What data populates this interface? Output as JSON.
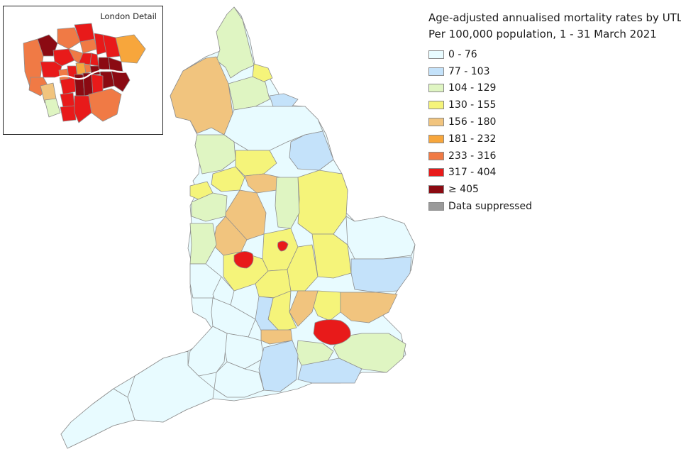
{
  "title": {
    "line1": "Age-adjusted annualised mortality rates by UTLA",
    "line2": "Per 100,000 population, 1 - 31 March 2021"
  },
  "inset": {
    "title": "London Detail"
  },
  "legend": [
    {
      "label": "0 - 76",
      "color": "#e8fbff"
    },
    {
      "label": "77 - 103",
      "color": "#c4e2fa"
    },
    {
      "label": "104 - 129",
      "color": "#dff5c2"
    },
    {
      "label": "130 - 155",
      "color": "#f5f47a"
    },
    {
      "label": "156 - 180",
      "color": "#f1c47e"
    },
    {
      "label": "181 - 232",
      "color": "#f7a63c"
    },
    {
      "label": "233 - 316",
      "color": "#f07a45"
    },
    {
      "label": "317 - 404",
      "color": "#e81a1a"
    },
    {
      "label": "≥ 405",
      "color": "#8b0a12"
    },
    {
      "label": "Data suppressed",
      "color": "#9a9a9a"
    }
  ],
  "regions": [
    {
      "name": "northumberland",
      "band": 2
    },
    {
      "name": "cumbria",
      "band": 4
    },
    {
      "name": "tyne-and-wear",
      "band": 3
    },
    {
      "name": "county-durham",
      "band": 2
    },
    {
      "name": "tees-valley",
      "band": 1
    },
    {
      "name": "north-yorkshire",
      "band": 0
    },
    {
      "name": "east-riding",
      "band": 1
    },
    {
      "name": "lancashire",
      "band": 2
    },
    {
      "name": "west-yorkshire",
      "band": 3
    },
    {
      "name": "south-yorkshire",
      "band": 4
    },
    {
      "name": "greater-manchester",
      "band": 3
    },
    {
      "name": "merseyside",
      "band": 3
    },
    {
      "name": "cheshire",
      "band": 2
    },
    {
      "name": "lincolnshire",
      "band": 3
    },
    {
      "name": "derbyshire",
      "band": 4
    },
    {
      "name": "nottinghamshire",
      "band": 2
    },
    {
      "name": "staffordshire",
      "band": 4
    },
    {
      "name": "shropshire",
      "band": 2
    },
    {
      "name": "west-midlands",
      "band": 3
    },
    {
      "name": "leicestershire",
      "band": 3
    },
    {
      "name": "herefordshire",
      "band": 0
    },
    {
      "name": "worcestershire",
      "band": 0
    },
    {
      "name": "warwickshire",
      "band": 3
    },
    {
      "name": "northamptonshire",
      "band": 3
    },
    {
      "name": "cambridgeshire",
      "band": 3
    },
    {
      "name": "norfolk",
      "band": 0
    },
    {
      "name": "suffolk",
      "band": 1
    },
    {
      "name": "essex",
      "band": 4
    },
    {
      "name": "hertfordshire",
      "band": 3
    },
    {
      "name": "bedfordshire",
      "band": 4
    },
    {
      "name": "buckinghamshire",
      "band": 3
    },
    {
      "name": "oxfordshire",
      "band": 1
    },
    {
      "name": "gloucestershire",
      "band": 0
    },
    {
      "name": "wiltshire",
      "band": 0
    },
    {
      "name": "berkshire",
      "band": 4
    },
    {
      "name": "surrey",
      "band": 2
    },
    {
      "name": "kent",
      "band": 2
    },
    {
      "name": "west-sussex",
      "band": 1
    },
    {
      "name": "hampshire",
      "band": 1
    },
    {
      "name": "dorset",
      "band": 0
    },
    {
      "name": "somerset",
      "band": 0
    },
    {
      "name": "devon",
      "band": 0
    },
    {
      "name": "cornwall",
      "band": 0
    },
    {
      "name": "london",
      "band": 7
    },
    {
      "name": "birmingham",
      "band": 7
    },
    {
      "name": "leicester",
      "band": 7
    }
  ],
  "london_boroughs": [
    {
      "name": "hillingdon",
      "band": 6
    },
    {
      "name": "harrow",
      "band": 8
    },
    {
      "name": "barnet",
      "band": 6
    },
    {
      "name": "enfield",
      "band": 7
    },
    {
      "name": "haringey",
      "band": 6
    },
    {
      "name": "waltham-forest",
      "band": 7
    },
    {
      "name": "redbridge",
      "band": 7
    },
    {
      "name": "havering",
      "band": 5
    },
    {
      "name": "brent",
      "band": 7
    },
    {
      "name": "camden",
      "band": 6
    },
    {
      "name": "islington",
      "band": 7
    },
    {
      "name": "hackney",
      "band": 7
    },
    {
      "name": "newham",
      "band": 8
    },
    {
      "name": "barking-dagenham",
      "band": 8
    },
    {
      "name": "ealing",
      "band": 7
    },
    {
      "name": "hounslow",
      "band": 6
    },
    {
      "name": "hammersmith",
      "band": 6
    },
    {
      "name": "kensington",
      "band": 7
    },
    {
      "name": "westminster",
      "band": 5
    },
    {
      "name": "city",
      "band": 6
    },
    {
      "name": "tower-hamlets",
      "band": 8
    },
    {
      "name": "greenwich",
      "band": 8
    },
    {
      "name": "bexley",
      "band": 8
    },
    {
      "name": "richmond",
      "band": 4
    },
    {
      "name": "kingston",
      "band": 2
    },
    {
      "name": "wandsworth",
      "band": 7
    },
    {
      "name": "lambeth",
      "band": 8
    },
    {
      "name": "southwark",
      "band": 8
    },
    {
      "name": "lewisham",
      "band": 7
    },
    {
      "name": "merton",
      "band": 7
    },
    {
      "name": "sutton",
      "band": 7
    },
    {
      "name": "croydon",
      "band": 7
    },
    {
      "name": "bromley",
      "band": 6
    }
  ]
}
